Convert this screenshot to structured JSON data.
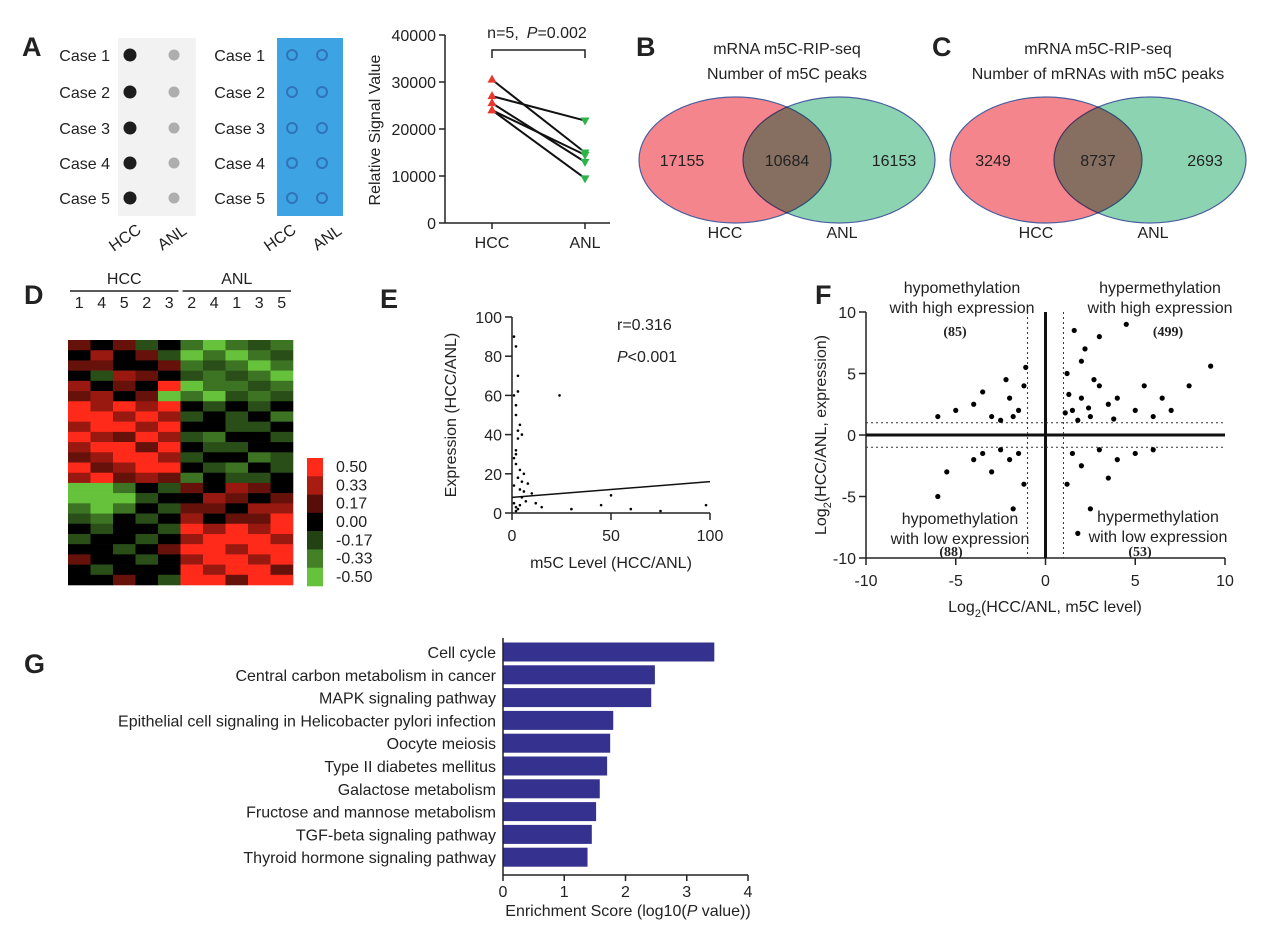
{
  "chart_data": [
    {
      "type": "dotblot",
      "panel": "A",
      "rows": [
        "Case 1",
        "Case 2",
        "Case 3",
        "Case 4",
        "Case 5"
      ],
      "columns": [
        "HCC",
        "ANL"
      ],
      "color": "#f2f2f2"
    },
    {
      "type": "dotblot",
      "rows": [
        "Case 1",
        "Case 2",
        "Case 3",
        "Case 4",
        "Case 5"
      ],
      "columns": [
        "HCC",
        "ANL"
      ],
      "color": "#3ea3e2"
    },
    {
      "type": "paired",
      "ylabel": "Relative Signal Value",
      "categories": [
        "HCC",
        "ANL"
      ],
      "annotation": [
        "n=5,",
        "P",
        "=0.002"
      ],
      "pairs": [
        [
          30500,
          15000
        ],
        [
          27000,
          21800
        ],
        [
          25500,
          13000
        ],
        [
          24000,
          14500
        ],
        [
          24000,
          9500
        ]
      ],
      "colors": [
        "#e8382f",
        "#2db34a"
      ],
      "ylim": [
        0,
        40000
      ],
      "yticks": [
        0,
        10000,
        20000,
        30000,
        40000
      ]
    },
    {
      "type": "venn",
      "panel": "B",
      "title": [
        "mRNA m5C-RIP-seq",
        "Number of m5C peaks"
      ],
      "sets": [
        "HCC",
        "ANL"
      ],
      "values": [
        17155,
        10684,
        16153
      ],
      "colors": [
        "#f4787f",
        "#7fcfa8"
      ]
    },
    {
      "type": "venn",
      "panel": "C",
      "title": [
        "mRNA m5C-RIP-seq",
        "Number of mRNAs with m5C peaks"
      ],
      "sets": [
        "HCC",
        "ANL"
      ],
      "values": [
        3249,
        8737,
        2693
      ],
      "colors": [
        "#f4787f",
        "#7fcfa8"
      ]
    },
    {
      "type": "heatmap",
      "panel": "D",
      "groups": [
        {
          "name": "HCC",
          "columns": [
            "1",
            "4",
            "5",
            "2",
            "3"
          ]
        },
        {
          "name": "ANL",
          "columns": [
            "2",
            "4",
            "1",
            "3",
            "5"
          ]
        }
      ],
      "matrix": [
        [
          0.2,
          0,
          0.2,
          -0.2,
          0,
          -0.3,
          -0.5,
          -0.3,
          -0.2,
          -0.3
        ],
        [
          0,
          0.3,
          0,
          0.2,
          -0.2,
          -0.5,
          -0.3,
          -0.5,
          -0.3,
          -0.2
        ],
        [
          0.2,
          0.2,
          0,
          0,
          0.2,
          -0.3,
          -0.2,
          -0.3,
          -0.5,
          -0.3
        ],
        [
          0,
          -0.2,
          0.3,
          0.2,
          0,
          -0.2,
          -0.3,
          -0.2,
          -0.3,
          -0.5
        ],
        [
          0.3,
          0,
          0.2,
          0,
          0.5,
          -0.5,
          -0.3,
          -0.3,
          -0.2,
          -0.3
        ],
        [
          0.2,
          0.3,
          0,
          0.2,
          -0.5,
          -0.3,
          -0.5,
          -0.2,
          -0.3,
          -0.2
        ],
        [
          0.5,
          0.3,
          0.5,
          0.3,
          0.5,
          0,
          -0.2,
          0,
          -0.2,
          0
        ],
        [
          0.5,
          0.5,
          0.3,
          0.5,
          0.3,
          -0.2,
          0,
          -0.2,
          0,
          -0.3
        ],
        [
          0.3,
          0.5,
          0.5,
          0.3,
          0.5,
          0,
          0,
          -0.2,
          -0.2,
          0
        ],
        [
          0.5,
          0.3,
          0.2,
          0.5,
          0.3,
          -0.2,
          -0.3,
          0,
          0,
          -0.2
        ],
        [
          0.3,
          0.5,
          0.5,
          0.2,
          0.5,
          0,
          -0.2,
          -0.2,
          0,
          0
        ],
        [
          0.2,
          0.3,
          0.5,
          0.5,
          0.3,
          -0.2,
          0,
          0,
          -0.3,
          -0.2
        ],
        [
          0.5,
          0.2,
          0.3,
          0.5,
          0.5,
          0,
          -0.2,
          -0.3,
          0,
          -0.2
        ],
        [
          0.3,
          0.5,
          0.2,
          0.3,
          0.2,
          -0.3,
          0,
          -0.2,
          -0.2,
          0
        ],
        [
          -0.5,
          -0.5,
          -0.3,
          0,
          -0.2,
          0.2,
          0,
          0.3,
          0.2,
          0
        ],
        [
          -0.5,
          -0.5,
          -0.5,
          -0.2,
          0,
          0,
          0.3,
          0.2,
          0,
          0.2
        ],
        [
          -0.3,
          -0.5,
          -0.3,
          0,
          -0.2,
          0.2,
          0.2,
          0,
          0.3,
          0.3
        ],
        [
          -0.2,
          -0.3,
          0,
          -0.2,
          0,
          0.3,
          0,
          0.2,
          0.2,
          0.5
        ],
        [
          0,
          -0.2,
          0,
          0,
          -0.2,
          0.5,
          0.3,
          0.5,
          0.3,
          0.5
        ],
        [
          -0.2,
          0,
          0,
          -0.2,
          0,
          0.3,
          0.5,
          0.5,
          0.5,
          0.3
        ],
        [
          0,
          0,
          -0.2,
          0,
          0.2,
          0.5,
          0.5,
          0.3,
          0.5,
          0.5
        ],
        [
          0.2,
          0,
          0,
          -0.2,
          0,
          0.3,
          0.5,
          0.5,
          0.3,
          0.5
        ],
        [
          0,
          -0.2,
          0,
          0,
          0,
          0.5,
          0.3,
          0.5,
          0.5,
          0.2
        ],
        [
          0,
          0,
          0.2,
          0,
          -0.2,
          0.5,
          0.5,
          0.2,
          0.5,
          0.5
        ]
      ],
      "colorbar_ticks": [
        {
          "value": 0.5,
          "label": "0.50"
        },
        0.33,
        0.17,
        {
          "value": 0,
          "label": "0.00"
        },
        -0.17,
        -0.33,
        {
          "value": -0.5,
          "label": "-0.50"
        }
      ],
      "color_high": "#ff2a1a",
      "color_low": "#66c23a"
    },
    {
      "type": "scatter",
      "panel": "E",
      "xlabel": "m5C Level (HCC/ANL)",
      "ylabel": "Expression (HCC/ANL)",
      "annotations": [
        [
          "r=0.316"
        ],
        [
          "P",
          "<0.001"
        ]
      ],
      "x": [
        1,
        2,
        3,
        1,
        2,
        4,
        5,
        3,
        2,
        1,
        6,
        8,
        10,
        2,
        3,
        4,
        1,
        2,
        5,
        7,
        3,
        2,
        4,
        24,
        15,
        30,
        45,
        60,
        75,
        98,
        50,
        12,
        2,
        3,
        4,
        1,
        2,
        3,
        5,
        6
      ],
      "y": [
        90,
        85,
        70,
        60,
        55,
        45,
        40,
        38,
        32,
        28,
        20,
        15,
        10,
        25,
        18,
        12,
        5,
        3,
        8,
        6,
        2,
        1,
        4,
        60,
        3,
        2,
        4,
        2,
        1,
        4,
        9,
        5,
        50,
        42,
        22,
        14,
        30,
        62,
        16,
        11
      ],
      "fit": {
        "x": [
          0,
          100
        ],
        "y": [
          8,
          16
        ]
      },
      "xlim": [
        0,
        100
      ],
      "xticks": [
        0,
        50,
        100
      ],
      "ylim": [
        0,
        100
      ],
      "yticks": [
        0,
        20,
        40,
        60,
        80,
        100
      ],
      "color": "#000000"
    },
    {
      "type": "scatter",
      "panel": "F",
      "xlabel": [
        "Log",
        "2",
        "(HCC/ANL, m5C level)"
      ],
      "ylabel": [
        "Log",
        "2",
        "(HCC/ANL, expression)"
      ],
      "quadrants": [
        {
          "lines": [
            "hypomethylation",
            "with high expression"
          ],
          "count": 85,
          "count_label": "(85)"
        },
        {
          "lines": [
            "hypermethylation",
            "with high expression"
          ],
          "count": 499,
          "count_label": "(499)"
        },
        {
          "lines": [
            "hypomethylation",
            "with low expression"
          ],
          "count": 88,
          "count_label": "(88)"
        },
        {
          "lines": [
            "hypermethylation",
            "with low expression"
          ],
          "count": 53,
          "count_label": "(53)"
        }
      ],
      "x": [
        1.5,
        2,
        2.5,
        3,
        1.2,
        2,
        3.5,
        4,
        1.8,
        2.2,
        5,
        6,
        8,
        9.2,
        7,
        3,
        4.5,
        1.3,
        2.7,
        3.8,
        1.6,
        5.5,
        2.4,
        1.1,
        6.5,
        -1.5,
        -2,
        -3,
        -4,
        -1.2,
        -2.5,
        -5,
        -6,
        -1.1,
        -3.5,
        -1.8,
        -2.2,
        -1.5,
        -2,
        -3,
        -1.2,
        -2.5,
        -4,
        -6,
        -1.8,
        -3.5,
        -5.5,
        1.5,
        2,
        3,
        1.2,
        4,
        2.5,
        1.8,
        5,
        3.5,
        6
      ],
      "y": [
        2,
        3,
        1.5,
        4,
        5,
        6,
        2.5,
        3,
        1.2,
        7,
        2,
        1.5,
        4,
        5.6,
        2,
        8,
        9,
        3.3,
        4.5,
        1.3,
        8.5,
        4,
        2.2,
        1.8,
        3,
        2,
        3,
        1.5,
        2.5,
        4,
        1.2,
        2,
        1.5,
        5.5,
        3.5,
        1.5,
        4.5,
        -1.5,
        -2,
        -3,
        -4,
        -1.2,
        -2,
        -5,
        -6,
        -1.5,
        -3,
        -1.5,
        -2.5,
        -1.2,
        -4,
        -2,
        -6,
        -8,
        -1.5,
        -3.5,
        -1.2
      ],
      "thresholds": [
        -1,
        1
      ],
      "xlim": [
        -10,
        10
      ],
      "xticks": [
        -10,
        -5,
        0,
        5,
        10
      ],
      "ylim": [
        -10,
        10
      ],
      "yticks": [
        -10,
        -5,
        0,
        5,
        10
      ],
      "color": "#000000"
    },
    {
      "type": "hbar",
      "panel": "G",
      "xlabel": [
        "Enrichment Score (log10(",
        "P",
        " value))"
      ],
      "categories": [
        "Cell cycle",
        "Central carbon metabolism in cancer",
        "MAPK signaling pathway",
        "Epithelial cell signaling in Helicobacter pylori infection",
        "Oocyte meiosis",
        "Type II diabetes mellitus",
        "Galactose metabolism",
        "Fructose and mannose metabolism",
        "TGF-beta signaling pathway",
        "Thyroid hormone signaling pathway"
      ],
      "values": [
        3.45,
        2.48,
        2.42,
        1.8,
        1.75,
        1.7,
        1.58,
        1.52,
        1.45,
        1.38
      ],
      "label_colors": [
        "#222222",
        "#e0262b",
        "#222222",
        "#222222",
        "#222222",
        "#222222",
        "#e0262b",
        "#e0262b",
        "#222222",
        "#222222"
      ],
      "color": "#34318f",
      "xlim": [
        0,
        4
      ],
      "xticks": [
        0,
        1,
        2,
        3,
        4
      ]
    }
  ]
}
